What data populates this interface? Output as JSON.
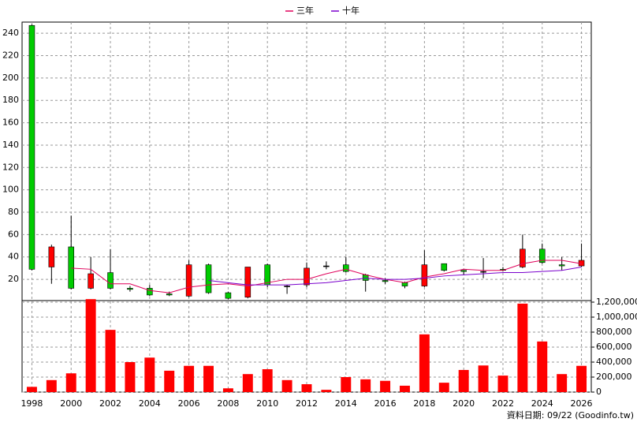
{
  "chart_data": {
    "type": "candlestick",
    "x": [
      1998,
      1999,
      2000,
      2001,
      2002,
      2003,
      2004,
      2005,
      2006,
      2007,
      2008,
      2009,
      2010,
      2011,
      2012,
      2013,
      2014,
      2015,
      2016,
      2017,
      2018,
      2019,
      2020,
      2021,
      2022,
      2023,
      2024,
      2025,
      2026
    ],
    "open": [
      247,
      31,
      49,
      12,
      26,
      12,
      12,
      7,
      5,
      33,
      8,
      4,
      33,
      14,
      15,
      32,
      33,
      24,
      19,
      17,
      14,
      34,
      28,
      27,
      29,
      31,
      47,
      33,
      32
    ],
    "high": [
      248,
      51,
      77,
      40,
      47,
      14,
      15,
      9,
      37,
      34,
      9,
      31,
      34,
      15,
      35,
      36,
      40,
      25,
      21,
      18,
      46,
      34,
      28,
      39,
      31,
      60,
      52,
      40,
      52
    ],
    "low": [
      28,
      16,
      11,
      11,
      11,
      9,
      5,
      5,
      4,
      7,
      2,
      3,
      13,
      7,
      13,
      29,
      26,
      9,
      16,
      12,
      13,
      27,
      24,
      21,
      27,
      30,
      34,
      28,
      31
    ],
    "close": [
      29,
      49,
      12,
      25,
      12,
      11,
      6,
      6,
      33,
      8,
      3,
      31,
      15,
      14,
      30,
      32,
      27,
      19,
      18,
      14,
      33,
      28,
      27,
      27,
      28,
      47,
      35,
      32,
      37
    ],
    "up_color": "#ff0000",
    "down_color": "#00cc00",
    "series": [
      {
        "name": "三年",
        "color": "#e0005a",
        "values": [
          null,
          null,
          30,
          29,
          16,
          16,
          10,
          8,
          13,
          15,
          16,
          14,
          17,
          20,
          20,
          25,
          29,
          24,
          20,
          17,
          22,
          25,
          29,
          28,
          28,
          34,
          37,
          37,
          34
        ]
      },
      {
        "name": "十年",
        "color": "#7a00cc",
        "values": [
          null,
          null,
          null,
          null,
          null,
          null,
          null,
          null,
          null,
          19,
          17,
          15,
          15,
          15,
          16,
          17,
          19,
          21,
          20,
          20,
          21,
          23,
          24,
          25,
          26,
          26,
          27,
          28,
          31
        ]
      }
    ],
    "volume": [
      70000,
      160000,
      250000,
      1240000,
      830000,
      400000,
      460000,
      285000,
      350000,
      350000,
      50000,
      240000,
      305000,
      160000,
      105000,
      30000,
      200000,
      170000,
      150000,
      85000,
      770000,
      125000,
      295000,
      355000,
      220000,
      1180000,
      675000,
      240000,
      350000
    ],
    "volume_color": "#ff0000",
    "xlim": [
      1997.5,
      2026.5
    ],
    "xticks": [
      1998,
      2000,
      2002,
      2004,
      2006,
      2008,
      2010,
      2012,
      2014,
      2016,
      2018,
      2020,
      2022,
      2024,
      2026
    ],
    "ylim": [
      1,
      250
    ],
    "yticks": [
      20,
      40,
      60,
      80,
      100,
      120,
      140,
      160,
      180,
      200,
      220,
      240
    ],
    "y2lim": [
      0,
      1221000
    ],
    "y2ticks": [
      0,
      {
        "value": 200000,
        "label": "200,000"
      },
      {
        "value": 400000,
        "label": "400,000"
      },
      {
        "value": 600000,
        "label": "600,000"
      },
      {
        "value": 800000,
        "label": "800,000"
      },
      {
        "value": 1000000,
        "label": "1,000,000"
      },
      {
        "value": 1200000,
        "label": "1,200,000"
      }
    ],
    "grid": true,
    "footnote": "資料日期: 09/22 (Goodinfo.tw)"
  }
}
